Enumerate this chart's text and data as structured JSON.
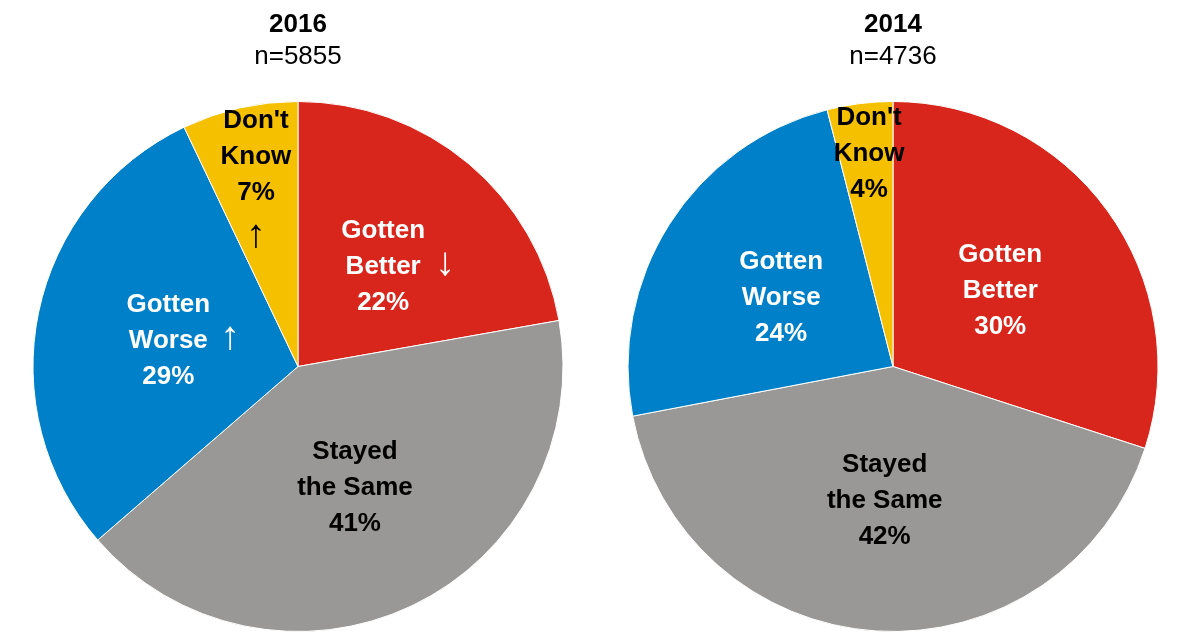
{
  "chart_data": [
    {
      "type": "pie",
      "title": "2016",
      "subtitle": "n=5855",
      "categories": [
        "Gotten Better",
        "Stayed the Same",
        "Gotten Worse",
        "Don't Know"
      ],
      "values": [
        22,
        41,
        29,
        7
      ],
      "value_labels": [
        "22%",
        "41%",
        "29%",
        "7%"
      ],
      "colors": [
        "#d9261c",
        "#999896",
        "#0080c8",
        "#f5c000"
      ],
      "annotations": [
        {
          "text": "↓",
          "x": "Gotten Better"
        },
        {
          "text": "↑",
          "x": "Gotten Worse"
        },
        {
          "text": "↑",
          "x": "Don't Know"
        }
      ]
    },
    {
      "type": "pie",
      "title": "2014",
      "subtitle": "n=4736",
      "categories": [
        "Gotten Better",
        "Stayed the Same",
        "Gotten Worse",
        "Don't Know"
      ],
      "values": [
        30,
        42,
        24,
        4
      ],
      "value_labels": [
        "30%",
        "42%",
        "24%",
        "4%"
      ],
      "colors": [
        "#d9261c",
        "#999896",
        "#0080c8",
        "#f5c000"
      ]
    }
  ]
}
